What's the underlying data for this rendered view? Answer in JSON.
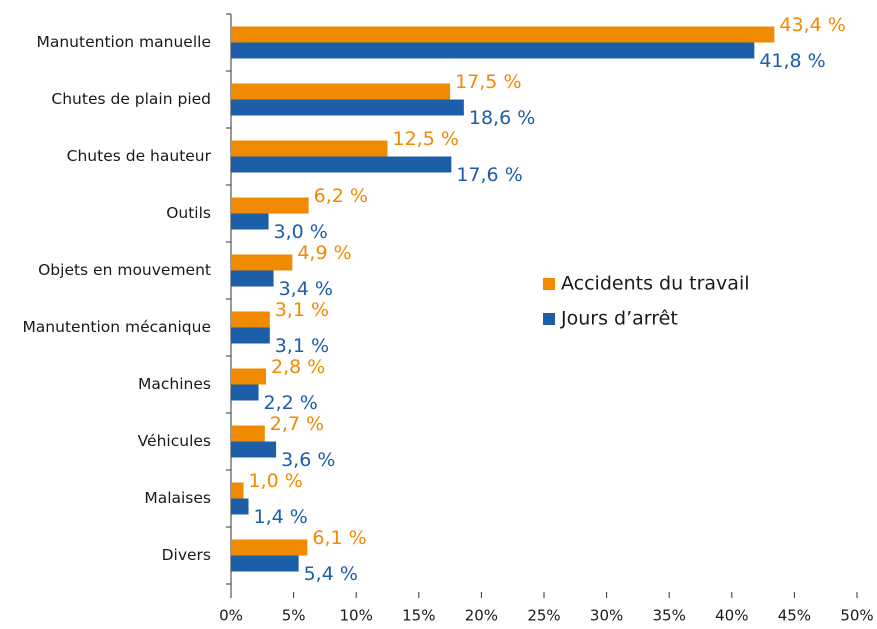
{
  "chart_data": {
    "type": "hbar",
    "categories": [
      "Manutention manuelle",
      "Chutes de plain pied",
      "Chutes de hauteur",
      "Outils",
      "Objets en mouvement",
      "Manutention mécanique",
      "Machines",
      "Véhicules",
      "Malaises",
      "Divers"
    ],
    "series": [
      {
        "name": "Accidents du travail",
        "color": "#f08a00",
        "values": [
          43.4,
          17.5,
          12.5,
          6.2,
          4.9,
          3.1,
          2.8,
          2.7,
          1.0,
          6.1
        ],
        "value_labels": [
          "43,4 %",
          "17,5 %",
          "12,5 %",
          "6,2 %",
          "4,9 %",
          "3,1 %",
          "2,8 %",
          "2,7 %",
          "1,0 %",
          "6,1 %"
        ]
      },
      {
        "name": "Jours d’arrêt",
        "color": "#1c5ea8",
        "values": [
          41.8,
          18.6,
          17.6,
          3.0,
          3.4,
          3.1,
          2.2,
          3.6,
          1.4,
          5.4
        ],
        "value_labels": [
          "41,8 %",
          "18,6 %",
          "17,6 %",
          "3,0 %",
          "3,4 %",
          "3,1 %",
          "2,2 %",
          "3,6 %",
          "1,4 %",
          "5,4 %"
        ]
      }
    ],
    "xlim": [
      0,
      50
    ],
    "xticks": [
      {
        "value": 0,
        "label": "0%"
      },
      {
        "value": 5,
        "label": "5%"
      },
      {
        "value": 10,
        "label": "10%"
      },
      {
        "value": 15,
        "label": "15%"
      },
      {
        "value": 20,
        "label": "20%"
      },
      {
        "value": 25,
        "label": "25%"
      },
      {
        "value": 30,
        "label": "30%"
      },
      {
        "value": 35,
        "label": "35%"
      },
      {
        "value": 40,
        "label": "40%"
      },
      {
        "value": 45,
        "label": "45%"
      },
      {
        "value": 50,
        "label": "50%"
      }
    ],
    "grid": false,
    "legend": "right"
  }
}
